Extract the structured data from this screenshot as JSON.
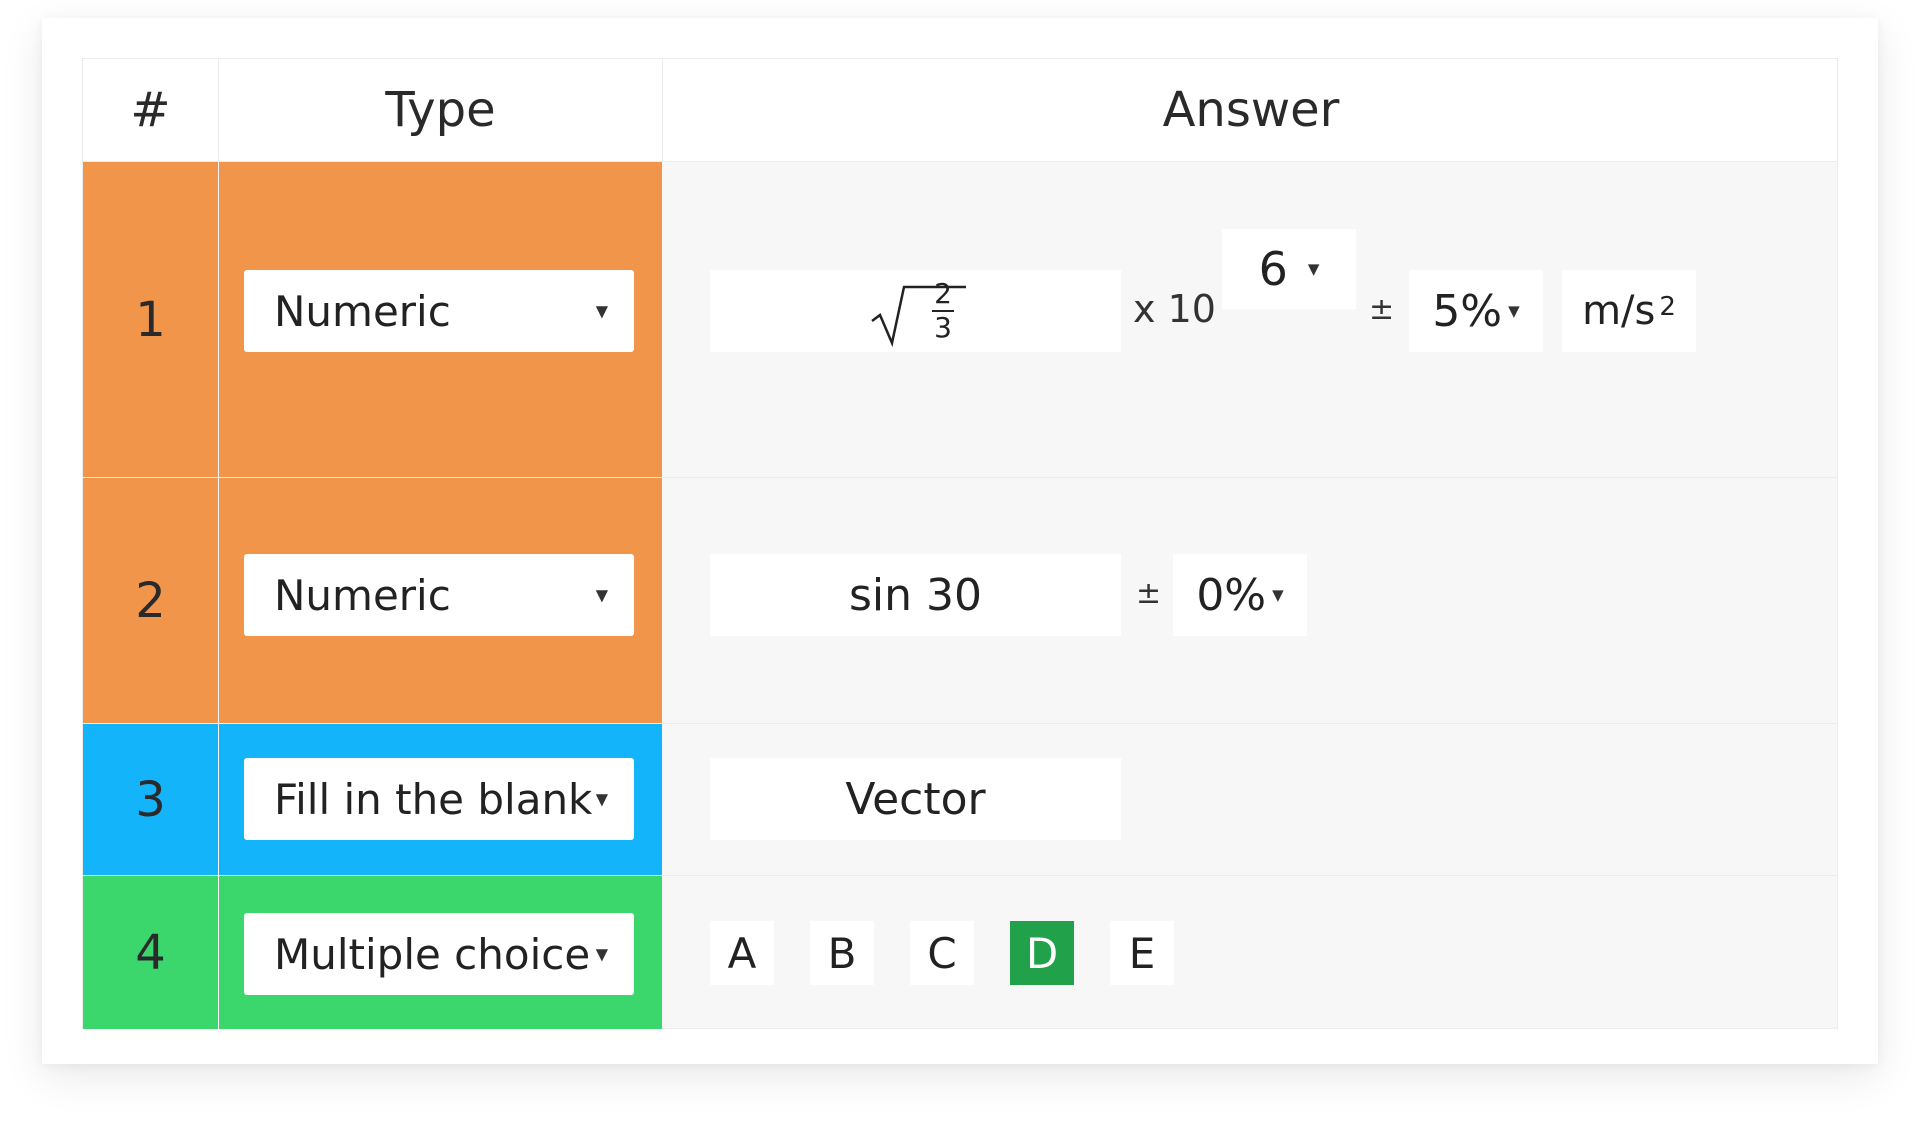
{
  "header": {
    "num": "#",
    "type": "Type",
    "answer": "Answer"
  },
  "colors": {
    "numeric": "#f0954a",
    "fill_blank": "#14b4fa",
    "multiple_choice": "#3bd76c",
    "selected_choice": "#21a24a"
  },
  "rows": [
    {
      "num": "1",
      "type": "Numeric",
      "answer": {
        "expr_label": "√(2/3)",
        "frac_num": "2",
        "frac_den": "3",
        "times": "x 10",
        "exponent": "6",
        "pm": "±",
        "tolerance": "5%",
        "unit": "m/s",
        "unit_sup": "2"
      }
    },
    {
      "num": "2",
      "type": "Numeric",
      "answer": {
        "expr": "sin 30",
        "pm": "±",
        "tolerance": "0%"
      }
    },
    {
      "num": "3",
      "type": "Fill in the blank",
      "answer": {
        "text": "Vector"
      }
    },
    {
      "num": "4",
      "type": "Multiple choice",
      "answer": {
        "choices": [
          "A",
          "B",
          "C",
          "D",
          "E"
        ],
        "selected": "D"
      }
    }
  ],
  "icons": {
    "caret": "dropdown-caret-icon",
    "sqrt": "square-root-icon"
  }
}
